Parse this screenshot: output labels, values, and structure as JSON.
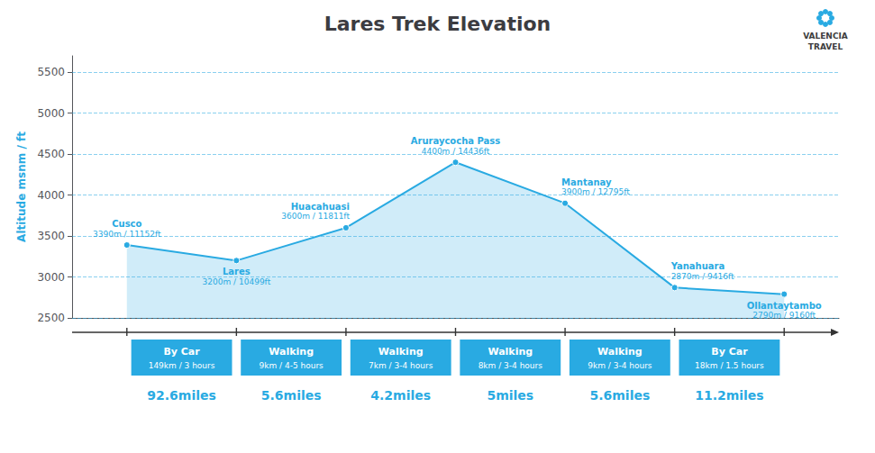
{
  "chart_data": {
    "type": "line",
    "title": "Lares Trek Elevation",
    "ylabel": "Altitude msnm / ft",
    "categories": [
      "Cusco",
      "Lares",
      "Huacahuasi",
      "Aruraycocha Pass",
      "Mantanay",
      "Yanahuara",
      "Ollantaytambo"
    ],
    "values": [
      3390,
      3200,
      3600,
      4400,
      3900,
      2870,
      2790
    ],
    "value_labels": [
      "3390m / 11152ft",
      "3200m / 10499ft",
      "3600m / 11811ft",
      "4400m / 14436ft",
      "3900m / 12795ft",
      "2870m / 9416ft",
      "2790m / 9160ft"
    ],
    "data_labels": true,
    "color": "#29aae2",
    "ylim": [
      2500,
      5700
    ],
    "yticks": [
      2500,
      3000,
      3500,
      4000,
      4500,
      5000,
      5500
    ],
    "grid": true,
    "tick_labels": "y",
    "segments": [
      {
        "from": "Cusco",
        "to": "Lares",
        "label": "By Car",
        "sublabel": "149km / 3 hours",
        "miles": "92.6miles"
      },
      {
        "from": "Lares",
        "to": "Huacahuasi",
        "label": "Walking",
        "sublabel": "9km / 4-5 hours",
        "miles": "5.6miles"
      },
      {
        "from": "Huacahuasi",
        "to": "Aruraycocha Pass",
        "label": "Walking",
        "sublabel": "7km / 3-4 hours",
        "miles": "4.2miles"
      },
      {
        "from": "Aruraycocha Pass",
        "to": "Mantanay",
        "label": "Walking",
        "sublabel": "8km / 3-4 hours",
        "miles": "5miles"
      },
      {
        "from": "Mantanay",
        "to": "Yanahuara",
        "label": "Walking",
        "sublabel": "9km / 3-4 hours",
        "miles": "5.6miles"
      },
      {
        "from": "Yanahuara",
        "to": "Ollantaytambo",
        "label": "By Car",
        "sublabel": "18km / 1.5 hours",
        "miles": "11.2miles"
      }
    ],
    "annotations": [
      "VALENCIA",
      "TRAVEL"
    ]
  }
}
